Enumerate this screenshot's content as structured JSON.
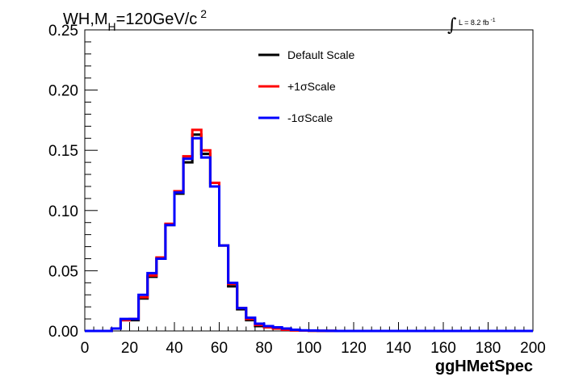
{
  "chart_data": {
    "type": "line",
    "title": {
      "main": "WH,M",
      "sub": "H",
      "rest": "=120GeV/c",
      "sup": "2"
    },
    "lumi": {
      "integral": "∫",
      "text": "L = 8.2 fb",
      "sup": "-1"
    },
    "xlabel": "ggHMetSpec",
    "ylabel": "",
    "xlim": [
      0,
      200
    ],
    "ylim": [
      0,
      0.25
    ],
    "xticks": [
      "0",
      "20",
      "40",
      "60",
      "80",
      "100",
      "120",
      "140",
      "160",
      "180",
      "200"
    ],
    "yticks": [
      "0.00",
      "0.05",
      "0.10",
      "0.15",
      "0.20",
      "0.25"
    ],
    "bin_edges": [
      0,
      4,
      8,
      12,
      16,
      20,
      24,
      28,
      32,
      36,
      40,
      44,
      48,
      52,
      56,
      60,
      64,
      68,
      72,
      76,
      80,
      84,
      88,
      92,
      96,
      100,
      104,
      108,
      112,
      116,
      120,
      124,
      128,
      132,
      136,
      140,
      144,
      148,
      152,
      156,
      160,
      164,
      168,
      172,
      176,
      180,
      184,
      188,
      192,
      196,
      200
    ],
    "series": [
      {
        "name": "Default Scale",
        "color": "#000000",
        "values": [
          0,
          0,
          0,
          0.002,
          0.009,
          0.009,
          0.027,
          0.045,
          0.06,
          0.088,
          0.114,
          0.14,
          0.163,
          0.147,
          0.12,
          0.071,
          0.037,
          0.018,
          0.009,
          0.004,
          0.003,
          0.002,
          0.001,
          0.0005,
          0.0003,
          0.0002,
          0.0001,
          0.0001,
          0,
          0,
          0,
          0,
          0,
          0,
          0,
          0,
          0,
          0,
          0,
          0,
          0,
          0,
          0,
          0,
          0,
          0,
          0,
          0,
          0,
          0
        ]
      },
      {
        "name": "+1σScale",
        "color": "#ff0000",
        "values": [
          0,
          0,
          0,
          0.002,
          0.009,
          0.01,
          0.028,
          0.046,
          0.061,
          0.089,
          0.116,
          0.145,
          0.167,
          0.15,
          0.123,
          0.071,
          0.039,
          0.019,
          0.01,
          0.005,
          0.003,
          0.002,
          0.001,
          0.0005,
          0.0003,
          0.0002,
          0.0001,
          0.0001,
          0,
          0,
          0,
          0,
          0,
          0,
          0,
          0,
          0,
          0,
          0,
          0,
          0,
          0,
          0,
          0,
          0,
          0,
          0,
          0,
          0,
          0
        ]
      },
      {
        "name": "-1σScale",
        "color": "#0000ff",
        "values": [
          0,
          0,
          0,
          0.002,
          0.01,
          0.01,
          0.03,
          0.048,
          0.06,
          0.088,
          0.115,
          0.143,
          0.16,
          0.144,
          0.12,
          0.071,
          0.04,
          0.019,
          0.011,
          0.006,
          0.004,
          0.003,
          0.002,
          0.001,
          0.0005,
          0.0003,
          0.0002,
          0.0001,
          0,
          0,
          0,
          0,
          0,
          0,
          0,
          0,
          0,
          0,
          0,
          0,
          0,
          0,
          0,
          0,
          0,
          0,
          0,
          0,
          0,
          0
        ]
      }
    ],
    "legend": "top-center",
    "grid": false
  }
}
